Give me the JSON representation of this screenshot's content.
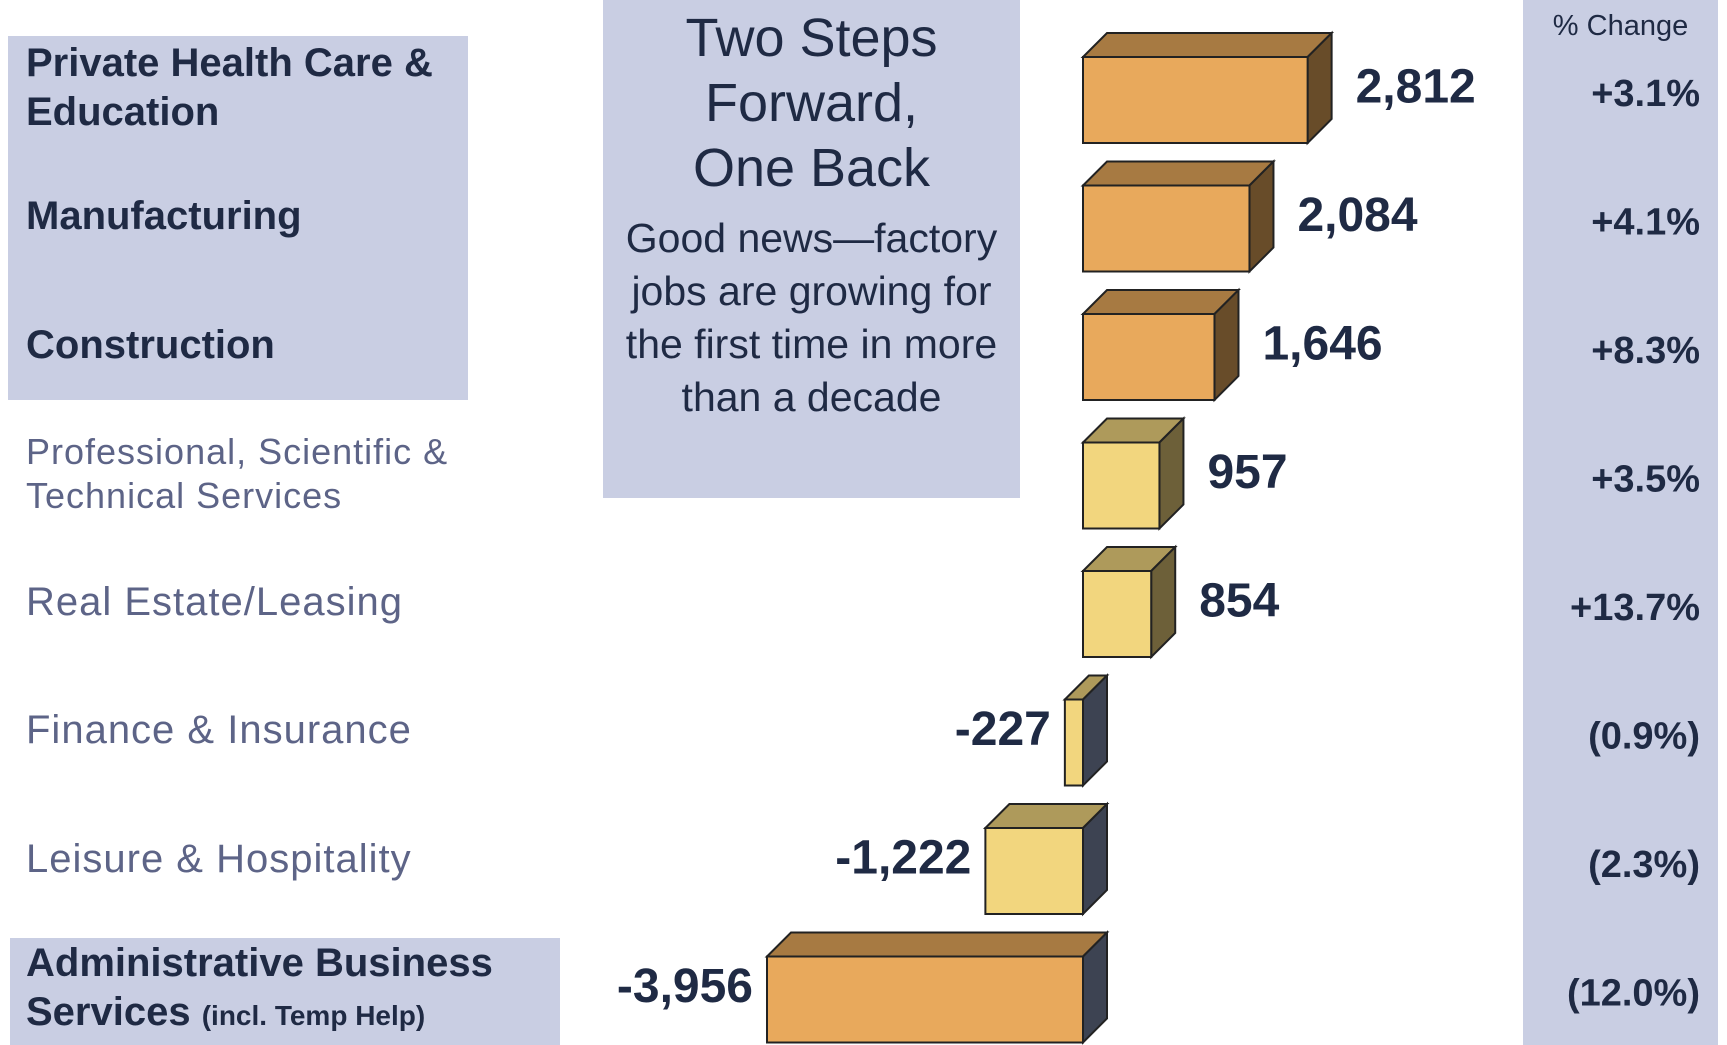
{
  "chart_data": {
    "type": "bar",
    "orientation": "horizontal",
    "title": "Two Steps Forward, One Back",
    "annotation": "Good news—factory jobs are growing for the first time in more than a decade",
    "categories": [
      "Private Health Care & Education",
      "Manufacturing",
      "Construction",
      "Professional, Scientific & Technical Services",
      "Real Estate/Leasing",
      "Finance & Insurance",
      "Leisure & Hospitality",
      "Administrative Business Services"
    ],
    "category_notes": {
      "7": "(incl. Temp Help)"
    },
    "values": [
      2812,
      2084,
      1646,
      957,
      854,
      -227,
      -1222,
      -3956
    ],
    "value_labels": [
      "2,812",
      "2,084",
      "1,646",
      "957",
      "854",
      "-227",
      "-1,222",
      "-3,956"
    ],
    "colors": [
      "#e8a95c",
      "#e8a95c",
      "#e8a95c",
      "#f2d67e",
      "#f2d67e",
      "#f2d67e",
      "#f2d67e",
      "#e8a95c"
    ],
    "highlighted": [
      true,
      true,
      true,
      false,
      false,
      false,
      false,
      true
    ],
    "pct_change": {
      "label": "% Change",
      "values": [
        3.1,
        4.1,
        8.3,
        3.5,
        13.7,
        -0.9,
        -2.3,
        -12.0
      ],
      "value_labels": [
        "+3.1%",
        "+4.1%",
        "+8.3%",
        "+3.5%",
        "+13.7%",
        "(0.9%)",
        "(2.3%)",
        "(12.0%)"
      ]
    }
  }
}
